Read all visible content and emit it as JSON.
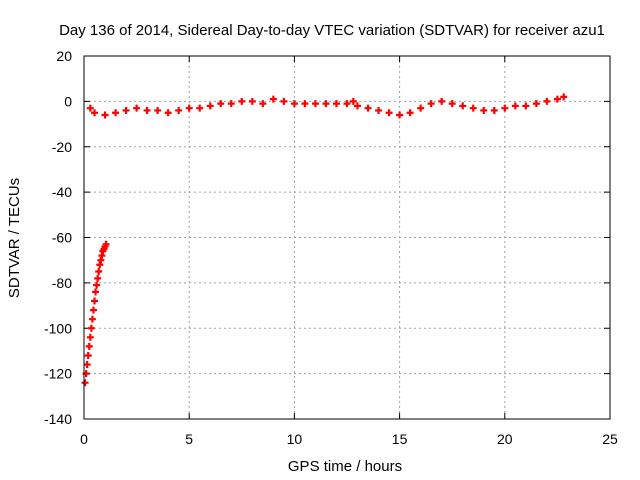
{
  "chart_data": {
    "type": "scatter",
    "title": "Day 136 of 2014, Sidereal Day-to-day VTEC variation (SDTVAR) for receiver azu1",
    "xlabel": "GPS time / hours",
    "ylabel": "SDTVAR / TECUs",
    "xlim": [
      0,
      25
    ],
    "ylim": [
      -140,
      20
    ],
    "xticks": [
      0,
      5,
      10,
      15,
      20,
      25
    ],
    "yticks": [
      -140,
      -120,
      -100,
      -80,
      -60,
      -40,
      -20,
      0,
      20
    ],
    "grid": true,
    "marker": "plus",
    "series": [
      {
        "name": "azu1",
        "color": "#ff0000",
        "x": [
          0.05,
          0.1,
          0.15,
          0.2,
          0.25,
          0.3,
          0.35,
          0.4,
          0.45,
          0.5,
          0.55,
          0.6,
          0.65,
          0.7,
          0.75,
          0.8,
          0.85,
          0.9,
          0.95,
          1.0,
          1.05,
          0.3,
          0.5,
          1.0,
          1.5,
          2.0,
          2.5,
          3.0,
          3.5,
          4.0,
          4.5,
          5.0,
          5.5,
          6.0,
          6.5,
          7.0,
          7.5,
          8.0,
          8.5,
          9.0,
          9.5,
          10.0,
          10.5,
          11.0,
          11.5,
          12.0,
          12.5,
          12.8,
          13.0,
          13.5,
          14.0,
          14.5,
          15.0,
          15.5,
          16.0,
          16.5,
          17.0,
          17.5,
          18.0,
          18.5,
          19.0,
          19.5,
          20.0,
          20.5,
          21.0,
          21.5,
          22.0,
          22.5,
          22.8
        ],
        "y": [
          -124,
          -120,
          -116,
          -112,
          -108,
          -104,
          -100,
          -96,
          -92,
          -88,
          -84,
          -81,
          -78,
          -75,
          -72,
          -70,
          -68,
          -66,
          -65,
          -64,
          -63,
          -3,
          -5,
          -6,
          -5,
          -4,
          -3,
          -4,
          -4,
          -5,
          -4,
          -3,
          -3,
          -2,
          -1,
          -1,
          0,
          0,
          -1,
          1,
          0,
          -1,
          -1,
          -1,
          -1,
          -1,
          -1,
          0,
          -2,
          -3,
          -4,
          -5,
          -6,
          -5,
          -3,
          -1,
          0,
          -1,
          -2,
          -3,
          -4,
          -4,
          -3,
          -2,
          -2,
          -1,
          0,
          1,
          2
        ]
      }
    ]
  }
}
